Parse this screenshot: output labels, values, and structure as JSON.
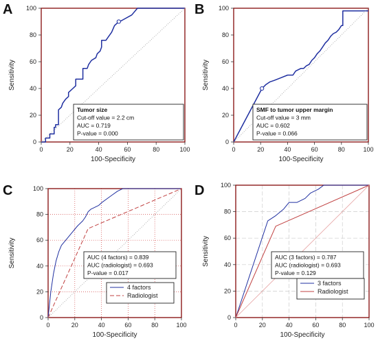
{
  "figure": {
    "panels": [
      {
        "label": "A",
        "xlabel": "100-Specificity",
        "ylabel": "Sensitivity",
        "annotation": [
          "Tumor size",
          "Cut-off value = 2.2 cm",
          "AUC = 0.719",
          "P-value = 0.000"
        ],
        "legend": []
      },
      {
        "label": "B",
        "xlabel": "100-Specificity",
        "ylabel": "Sensitivity",
        "annotation": [
          "SMF to tumor upper margin",
          "Cut-off value = 3 mm",
          "AUC = 0.602",
          "P-value = 0.066"
        ],
        "legend": []
      },
      {
        "label": "C",
        "xlabel": "100-Specificity",
        "ylabel": "Sensitivity",
        "annotation": [
          "AUC (4 factors) = 0.839",
          "AUC (radiologist) = 0.693",
          "P-value = 0.017"
        ],
        "legend": [
          "4 factors",
          "Radiologist"
        ]
      },
      {
        "label": "D",
        "xlabel": "100-Specificity",
        "ylabel": "Sensitivity",
        "annotation": [
          "AUC (3 factors) = 0.787",
          "AUC (radiologist) = 0.693",
          "P-value = 0.129"
        ],
        "legend": [
          "3 factors",
          "Radiologist"
        ]
      }
    ]
  },
  "colors": {
    "roc_blue": "#1f2fa0",
    "frame_red": "#8b1a1a",
    "radiologist_red": "#c04040",
    "grid": "#d04040",
    "diagonal": "#999999"
  },
  "chart_data": [
    {
      "type": "line",
      "title": "",
      "xlabel": "100-Specificity",
      "ylabel": "Sensitivity",
      "xlim": [
        0,
        100
      ],
      "ylim": [
        0,
        100
      ],
      "xticks": [
        0,
        20,
        40,
        60,
        80,
        100
      ],
      "yticks": [
        0,
        20,
        40,
        60,
        80,
        100
      ],
      "grid": false,
      "series": [
        {
          "name": "Tumor size",
          "style": "solid",
          "x": [
            0,
            3,
            3,
            6,
            6,
            9,
            9,
            10,
            10,
            12,
            12,
            14,
            15,
            17,
            19,
            19,
            22,
            24,
            24,
            29,
            29,
            32,
            33,
            35,
            38,
            39,
            41,
            42,
            42,
            45,
            47,
            49,
            51,
            53,
            58,
            63,
            67,
            70,
            100
          ],
          "y": [
            0,
            0,
            3,
            3,
            6,
            6,
            11,
            11,
            13,
            13,
            24,
            26,
            29,
            32,
            34,
            37,
            40,
            42,
            47,
            47,
            55,
            55,
            58,
            61,
            63,
            66,
            68,
            71,
            76,
            76,
            79,
            82,
            87,
            89,
            92,
            95,
            100,
            100,
            100
          ]
        },
        {
          "name": "Chance",
          "style": "dotted",
          "x": [
            0,
            100
          ],
          "y": [
            0,
            100
          ]
        }
      ],
      "markers": [
        {
          "x": 54,
          "y": 90,
          "label": "cut-off"
        }
      ],
      "annotation_position": "bottom-right"
    },
    {
      "type": "line",
      "title": "",
      "xlabel": "100-Specificity",
      "ylabel": "Sensitivity",
      "xlim": [
        0,
        100
      ],
      "ylim": [
        0,
        100
      ],
      "xticks": [
        0,
        20,
        40,
        60,
        80,
        100
      ],
      "yticks": [
        0,
        20,
        40,
        60,
        80,
        100
      ],
      "grid": false,
      "series": [
        {
          "name": "SMF to tumor upper margin",
          "style": "solid",
          "x": [
            0,
            21,
            22,
            24,
            27,
            30,
            35,
            40,
            44,
            46,
            50,
            52,
            54,
            56,
            58,
            60,
            62,
            64,
            66,
            68,
            70,
            72,
            74,
            76,
            78,
            80,
            81,
            81,
            84,
            100
          ],
          "y": [
            0,
            40,
            41,
            43,
            45,
            46,
            48,
            50,
            50,
            53,
            55,
            55,
            57,
            58,
            61,
            63,
            66,
            68,
            71,
            74,
            76,
            79,
            81,
            82,
            84,
            87,
            87,
            98,
            98,
            98
          ]
        },
        {
          "name": "Chance",
          "style": "dotted",
          "x": [
            0,
            100
          ],
          "y": [
            0,
            100
          ]
        }
      ],
      "markers": [
        {
          "x": 21,
          "y": 40,
          "label": "cut-off"
        }
      ],
      "annotation_position": "bottom-right"
    },
    {
      "type": "line",
      "title": "",
      "xlabel": "100-Specificity",
      "ylabel": "Sensitivity",
      "xlim": [
        0,
        100
      ],
      "ylim": [
        0,
        100
      ],
      "xticks": [
        0,
        20,
        40,
        60,
        80,
        100
      ],
      "yticks": [
        0,
        20,
        40,
        60,
        80,
        100
      ],
      "grid": true,
      "series": [
        {
          "name": "4 factors",
          "style": "solid",
          "x": [
            0,
            2,
            4,
            6,
            8,
            10,
            14,
            18,
            22,
            26,
            28,
            30,
            32,
            34,
            36,
            38,
            40,
            44,
            48,
            52,
            56,
            58,
            100
          ],
          "y": [
            0,
            20,
            34,
            44,
            51,
            56,
            61,
            66,
            71,
            75,
            78,
            82,
            84,
            85,
            86,
            87,
            89,
            92,
            95,
            98,
            100,
            100,
            100
          ]
        },
        {
          "name": "Radiologist",
          "style": "dashed",
          "x": [
            0,
            30,
            100
          ],
          "y": [
            0,
            69,
            100
          ]
        },
        {
          "name": "Chance",
          "style": "dotted",
          "x": [
            0,
            100
          ],
          "y": [
            0,
            100
          ]
        }
      ],
      "annotation_position": "center-right",
      "legend_position": "bottom-right"
    },
    {
      "type": "line",
      "title": "",
      "xlabel": "100-Specificity",
      "ylabel": "Sensitivity",
      "xlim": [
        0,
        100
      ],
      "ylim": [
        0,
        100
      ],
      "xticks": [
        0,
        20,
        40,
        60,
        80,
        100
      ],
      "yticks": [
        0,
        20,
        40,
        60,
        80,
        100
      ],
      "grid": true,
      "series": [
        {
          "name": "3 factors",
          "style": "solid",
          "x": [
            0,
            24,
            30,
            36,
            40,
            46,
            52,
            56,
            62,
            66,
            68,
            100
          ],
          "y": [
            0,
            73,
            77,
            82,
            87,
            87,
            90,
            94,
            97,
            100,
            100,
            100
          ]
        },
        {
          "name": "Radiologist",
          "style": "solid",
          "x": [
            0,
            30,
            100
          ],
          "y": [
            0,
            69,
            100
          ]
        },
        {
          "name": "Chance",
          "style": "dotted",
          "x": [
            0,
            100
          ],
          "y": [
            0,
            100
          ]
        }
      ],
      "annotation_position": "center-right",
      "legend_position": "bottom-right"
    }
  ]
}
